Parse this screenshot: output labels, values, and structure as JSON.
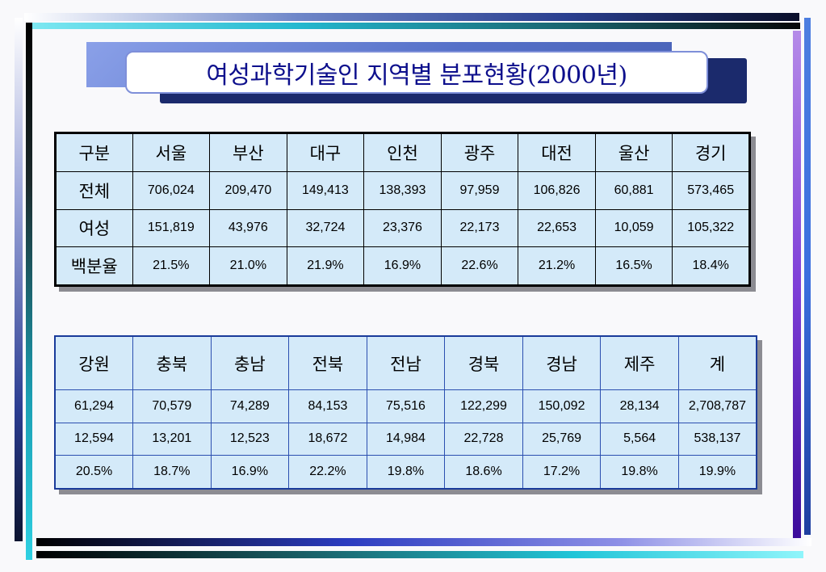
{
  "title": "여성과학기술인 지역별 분포현황(2000년)",
  "colors": {
    "cell_background": "#d4eaf9",
    "title_text": "#0d0f8c",
    "table2_border": "#1a3b9a"
  },
  "table1": {
    "header": [
      "구분",
      "서울",
      "부산",
      "대구",
      "인천",
      "광주",
      "대전",
      "울산",
      "경기"
    ],
    "rows": [
      [
        "전체",
        "706,024",
        "209,470",
        "149,413",
        "138,393",
        "97,959",
        "106,826",
        "60,881",
        "573,465"
      ],
      [
        "여성",
        "151,819",
        "43,976",
        "32,724",
        "23,376",
        "22,173",
        "22,653",
        "10,059",
        "105,322"
      ],
      [
        "백분율",
        "21.5%",
        "21.0%",
        "21.9%",
        "16.9%",
        "22.6%",
        "21.2%",
        "16.5%",
        "18.4%"
      ]
    ]
  },
  "table2": {
    "header": [
      "강원",
      "충북",
      "충남",
      "전북",
      "전남",
      "경북",
      "경남",
      "제주",
      "계"
    ],
    "rows": [
      [
        "61,294",
        "70,579",
        "74,289",
        "84,153",
        "75,516",
        "122,299",
        "150,092",
        "28,134",
        "2,708,787"
      ],
      [
        "12,594",
        "13,201",
        "12,523",
        "18,672",
        "14,984",
        "22,728",
        "25,769",
        "5,564",
        "538,137"
      ],
      [
        "20.5%",
        "18.7%",
        "16.9%",
        "22.2%",
        "19.8%",
        "18.6%",
        "17.2%",
        "19.8%",
        "19.9%"
      ]
    ]
  }
}
